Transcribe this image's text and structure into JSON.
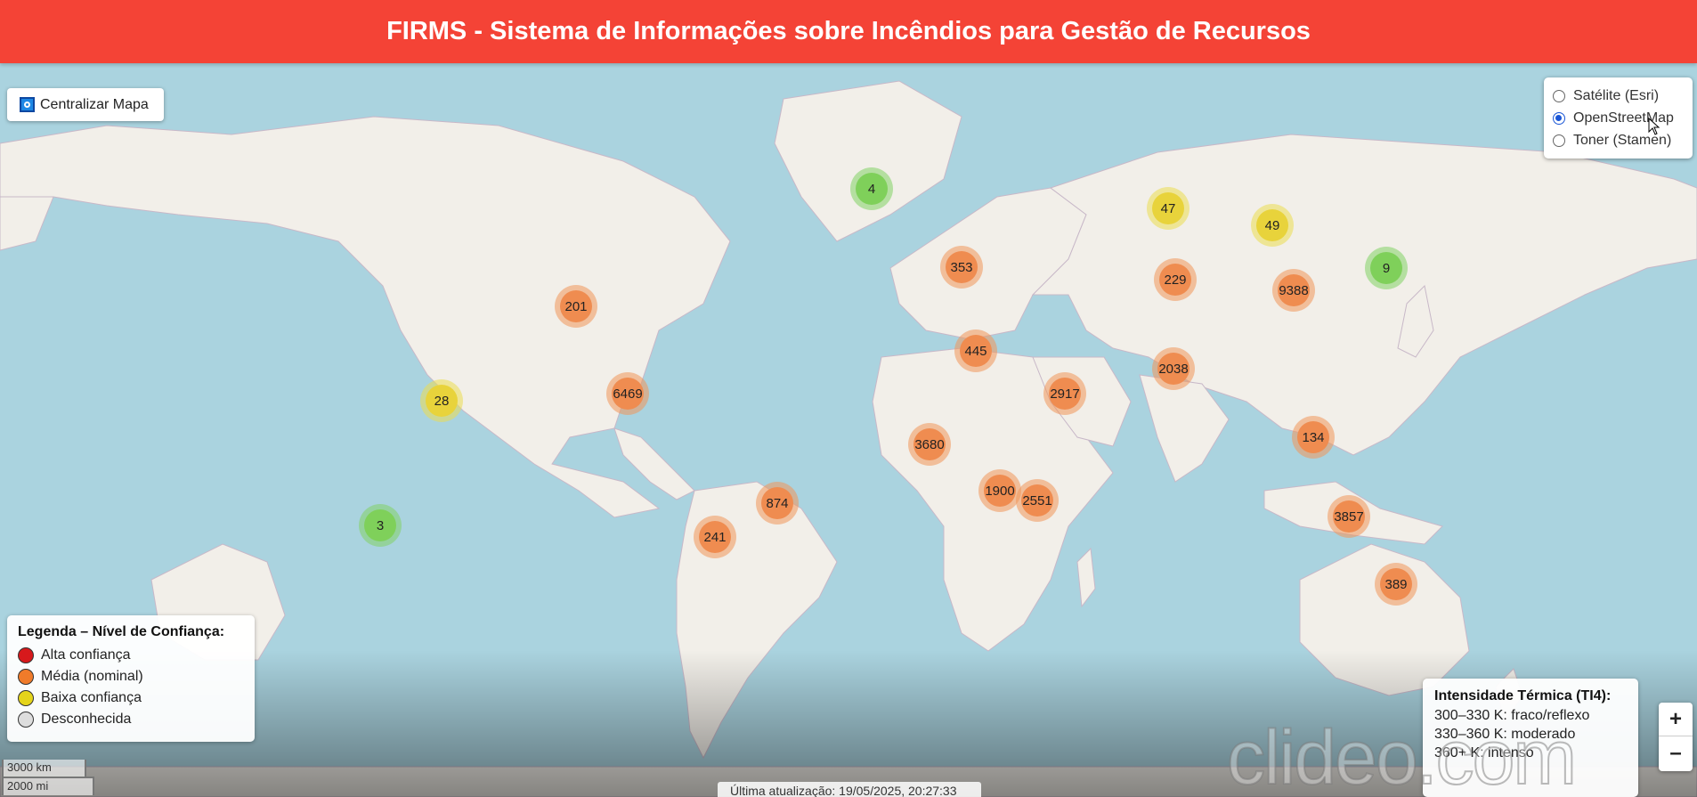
{
  "header": {
    "title": "FIRMS - Sistema de Informações sobre Incêndios para Gestão de Recursos"
  },
  "center_button": {
    "label": "Centralizar Mapa",
    "icon": "crosshair-icon"
  },
  "layers": {
    "options": [
      {
        "label": "Satélite (Esri)",
        "selected": false
      },
      {
        "label": "OpenStreetMap",
        "selected": true
      },
      {
        "label": "Toner (Stamen)",
        "selected": false
      }
    ]
  },
  "legend": {
    "title": "Legenda – Nível de Confiança:",
    "items": [
      {
        "label": "Alta confiança",
        "color": "#d7191c"
      },
      {
        "label": "Média (nominal)",
        "color": "#f07b2a"
      },
      {
        "label": "Baixa confiança",
        "color": "#e4d41b"
      },
      {
        "label": "Desconhecida",
        "color": "#dddddd"
      }
    ]
  },
  "thermal": {
    "title": "Intensidade Térmica (TI4):",
    "rows": [
      "300–330 K: fraco/reflexo",
      "330–360 K: moderado",
      "360+ K: intenso"
    ]
  },
  "zoom": {
    "in": "+",
    "out": "–"
  },
  "scale": {
    "km": "3000 km",
    "mi": "2000 mi"
  },
  "timestamp": "Última atualização: 19/05/2025, 20:27:33",
  "watermark": "clideo.com",
  "clusters": [
    {
      "count": "4",
      "color": "green"
    },
    {
      "count": "47",
      "color": "yellow"
    },
    {
      "count": "49",
      "color": "yellow"
    },
    {
      "count": "9",
      "color": "green"
    },
    {
      "count": "353",
      "color": "orange"
    },
    {
      "count": "229",
      "color": "orange"
    },
    {
      "count": "9388",
      "color": "orange"
    },
    {
      "count": "201",
      "color": "orange"
    },
    {
      "count": "445",
      "color": "orange"
    },
    {
      "count": "2038",
      "color": "orange"
    },
    {
      "count": "6469",
      "color": "orange"
    },
    {
      "count": "2917",
      "color": "orange"
    },
    {
      "count": "28",
      "color": "yellow"
    },
    {
      "count": "134",
      "color": "orange"
    },
    {
      "count": "3680",
      "color": "orange"
    },
    {
      "count": "1900",
      "color": "orange"
    },
    {
      "count": "2551",
      "color": "orange"
    },
    {
      "count": "874",
      "color": "orange"
    },
    {
      "count": "3857",
      "color": "orange"
    },
    {
      "count": "241",
      "color": "orange"
    },
    {
      "count": "3",
      "color": "green"
    },
    {
      "count": "389",
      "color": "orange"
    }
  ]
}
